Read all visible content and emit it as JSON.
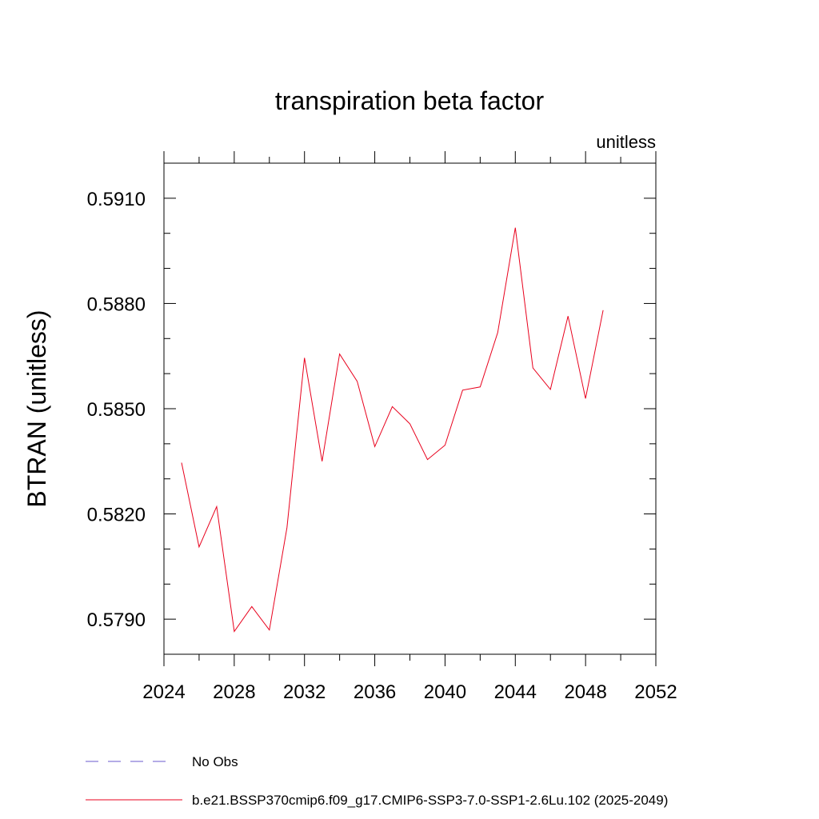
{
  "chart_data": {
    "type": "line",
    "title": "transpiration beta factor",
    "units_label": "unitless",
    "ylabel": "BTRAN  (unitless)",
    "xlabel": "",
    "xlim": [
      2024,
      2052
    ],
    "ylim": [
      0.578,
      0.592
    ],
    "x_major_ticks": [
      2024,
      2028,
      2032,
      2036,
      2040,
      2044,
      2048,
      2052
    ],
    "x_tick_labels": [
      "2024",
      "2028",
      "2032",
      "2036",
      "2040",
      "2044",
      "2048",
      "2052"
    ],
    "x_minor_step": 2,
    "y_major_ticks": [
      0.579,
      0.582,
      0.585,
      0.588,
      0.591
    ],
    "y_tick_labels": [
      "0.5790",
      "0.5820",
      "0.5850",
      "0.5880",
      "0.5910"
    ],
    "y_minor_step": 0.001,
    "grid": false,
    "legend_position": "bottom",
    "series": [
      {
        "name": "No Obs",
        "style": "dashed",
        "color": "#6a5acd",
        "x": [],
        "y": []
      },
      {
        "name": "b.e21.BSSP370cmip6.f09_g17.CMIP6-SSP3-7.0-SSP1-2.6Lu.102 (2025-2049)",
        "style": "solid",
        "color": "#e8001c",
        "x": [
          2025,
          2026,
          2027,
          2028,
          2029,
          2030,
          2031,
          2032,
          2033,
          2034,
          2035,
          2036,
          2037,
          2038,
          2039,
          2040,
          2041,
          2042,
          2043,
          2044,
          2045,
          2046,
          2047,
          2048,
          2049
        ],
        "y": [
          0.58346,
          0.58106,
          0.58221,
          0.57865,
          0.57936,
          0.57869,
          0.58161,
          0.58645,
          0.5835,
          0.58656,
          0.58578,
          0.58392,
          0.58506,
          0.58457,
          0.58355,
          0.58396,
          0.58553,
          0.58562,
          0.58717,
          0.59016,
          0.58616,
          0.58555,
          0.58764,
          0.58529,
          0.58781
        ]
      }
    ]
  }
}
